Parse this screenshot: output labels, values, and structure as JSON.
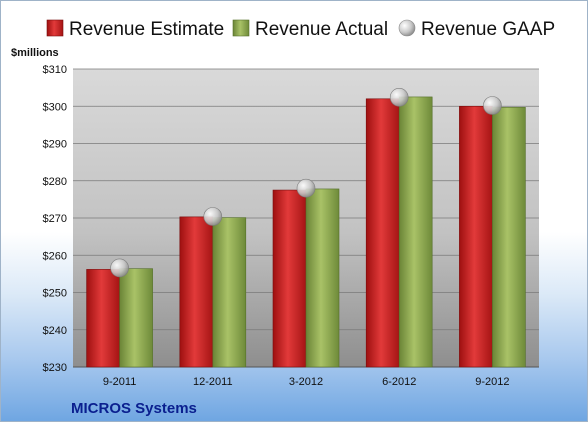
{
  "chart_data": {
    "type": "bar",
    "title": "",
    "xlabel": "",
    "ylabel": "$millions",
    "company": "MICROS Systems",
    "categories": [
      "9-2011",
      "12-2011",
      "3-2012",
      "6-2012",
      "9-2012"
    ],
    "series": [
      {
        "name": "Revenue Estimate",
        "kind": "bar",
        "color": "#cc1f1f",
        "values": [
          256.2,
          270.3,
          277.5,
          302.0,
          300.0
        ]
      },
      {
        "name": "Revenue Actual",
        "kind": "bar",
        "color": "#8aa34a",
        "values": [
          256.4,
          270.1,
          277.8,
          302.5,
          299.7
        ]
      },
      {
        "name": "Revenue GAAP",
        "kind": "marker",
        "color": "#c8c8c8",
        "values": [
          256.6,
          270.4,
          278.0,
          302.4,
          300.2
        ]
      }
    ],
    "ylim": [
      230,
      310
    ],
    "yticks": [
      230,
      240,
      250,
      260,
      270,
      280,
      290,
      300,
      310
    ],
    "ytick_labels": [
      "$230",
      "$240",
      "$250",
      "$260",
      "$270",
      "$280",
      "$290",
      "$300",
      "$310"
    ],
    "grid": true,
    "legend_position": "top"
  }
}
